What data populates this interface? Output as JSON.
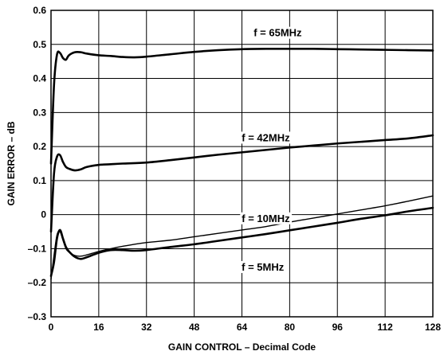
{
  "chart_data": {
    "type": "line",
    "title": "",
    "xlabel": "GAIN CONTROL – Decimal Code",
    "ylabel": "GAIN ERROR – dB",
    "xlim": [
      0,
      128
    ],
    "ylim": [
      -0.3,
      0.6
    ],
    "grid": true,
    "x_ticks": [
      0,
      16,
      32,
      48,
      64,
      80,
      96,
      112,
      128
    ],
    "x_tick_labels": [
      "0",
      "16",
      "32",
      "48",
      "64",
      "80",
      "96",
      "112",
      "128"
    ],
    "y_ticks": [
      -0.3,
      -0.2,
      -0.1,
      0,
      0.1,
      0.2,
      0.3,
      0.4,
      0.5,
      0.6
    ],
    "y_tick_labels": [
      "–0.3",
      "–0.2",
      "–0.1",
      "0",
      "0.1",
      "0.2",
      "0.3",
      "0.4",
      "0.5",
      "0.6"
    ],
    "series": [
      {
        "label": "f = 65MHz",
        "line_weight": "heavy",
        "x": [
          0,
          1,
          2,
          3,
          4,
          5,
          6,
          8,
          10,
          12,
          16,
          20,
          24,
          28,
          32,
          40,
          48,
          56,
          64,
          72,
          80,
          88,
          96,
          104,
          112,
          120,
          128
        ],
        "y": [
          0.15,
          0.38,
          0.47,
          0.475,
          0.46,
          0.455,
          0.468,
          0.477,
          0.477,
          0.473,
          0.468,
          0.466,
          0.463,
          0.462,
          0.464,
          0.471,
          0.478,
          0.483,
          0.486,
          0.487,
          0.487,
          0.487,
          0.486,
          0.485,
          0.484,
          0.483,
          0.482
        ]
      },
      {
        "label": "f = 42MHz",
        "line_weight": "heavy",
        "x": [
          0,
          1,
          2,
          3,
          4,
          5,
          6,
          8,
          10,
          12,
          16,
          20,
          24,
          32,
          40,
          48,
          56,
          64,
          72,
          80,
          88,
          96,
          104,
          112,
          120,
          128
        ],
        "y": [
          -0.05,
          0.12,
          0.17,
          0.175,
          0.155,
          0.14,
          0.135,
          0.13,
          0.133,
          0.14,
          0.146,
          0.148,
          0.15,
          0.153,
          0.16,
          0.168,
          0.176,
          0.183,
          0.19,
          0.197,
          0.203,
          0.209,
          0.214,
          0.219,
          0.224,
          0.233
        ]
      },
      {
        "label": "f = 10MHz",
        "line_weight": "light",
        "x": [
          0,
          1,
          2,
          3,
          4,
          5,
          6,
          8,
          10,
          12,
          16,
          20,
          24,
          32,
          40,
          48,
          56,
          64,
          72,
          80,
          88,
          96,
          104,
          112,
          120,
          128
        ],
        "y": [
          -0.19,
          -0.12,
          -0.06,
          -0.05,
          -0.075,
          -0.1,
          -0.11,
          -0.12,
          -0.122,
          -0.118,
          -0.108,
          -0.1,
          -0.093,
          -0.082,
          -0.075,
          -0.065,
          -0.055,
          -0.045,
          -0.035,
          -0.022,
          -0.01,
          0.002,
          0.014,
          0.026,
          0.04,
          0.055
        ]
      },
      {
        "label": "f = 5MHz",
        "line_weight": "heavy",
        "x": [
          0,
          1,
          2,
          3,
          4,
          5,
          6,
          8,
          10,
          12,
          16,
          20,
          24,
          28,
          32,
          40,
          48,
          56,
          64,
          72,
          80,
          88,
          96,
          104,
          112,
          120,
          128
        ],
        "y": [
          -0.18,
          -0.14,
          -0.07,
          -0.045,
          -0.07,
          -0.095,
          -0.108,
          -0.124,
          -0.13,
          -0.125,
          -0.112,
          -0.104,
          -0.104,
          -0.106,
          -0.104,
          -0.095,
          -0.087,
          -0.077,
          -0.067,
          -0.057,
          -0.046,
          -0.035,
          -0.024,
          -0.012,
          -0.002,
          0.01,
          0.02
        ]
      }
    ],
    "annotations": [
      {
        "text": "f = 65MHz",
        "x": 76,
        "y": 0.533
      },
      {
        "text": "f = 42MHz",
        "x": 72,
        "y": 0.225
      },
      {
        "text": "f = 10MHz",
        "x": 72,
        "y": -0.012
      },
      {
        "text": "f = 5MHz",
        "x": 71,
        "y": -0.155
      }
    ]
  }
}
